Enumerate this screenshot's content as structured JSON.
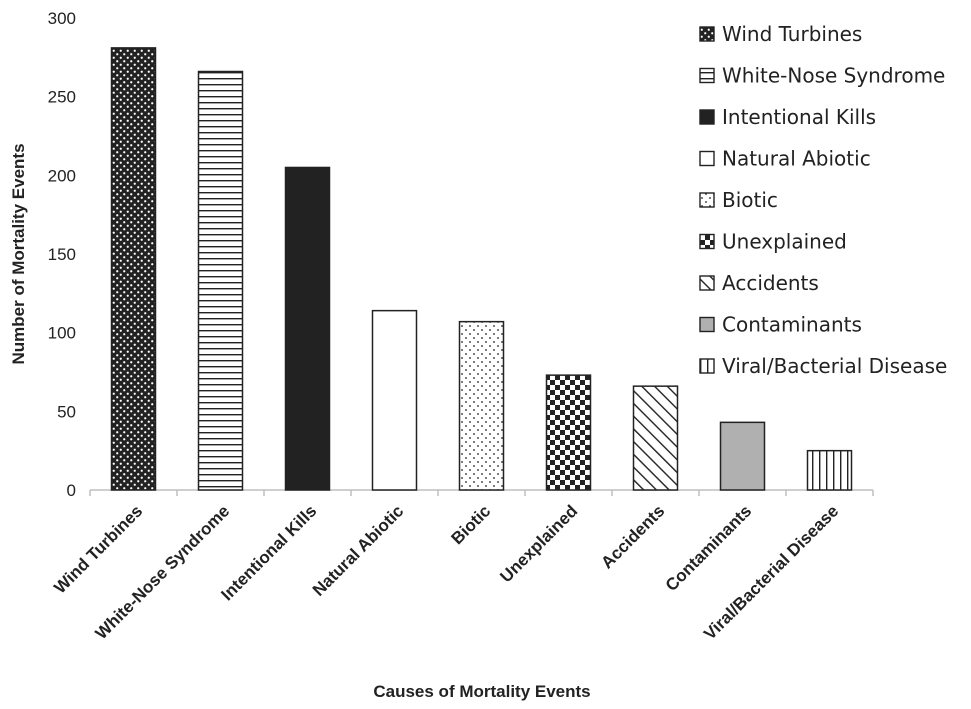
{
  "chart_data": {
    "type": "bar",
    "title": "",
    "xlabel": "Causes of Mortality Events",
    "ylabel": "Number of Mortality Events",
    "ylim": [
      0,
      300
    ],
    "yticks": [
      0,
      50,
      100,
      150,
      200,
      250,
      300
    ],
    "grid": false,
    "legend_position": "top-right",
    "categories": [
      "Wind Turbines",
      "White-Nose Syndrome",
      "Intentional Kills",
      "Natural Abiotic",
      "Biotic",
      "Unexplained",
      "Accidents",
      "Contaminants",
      "Viral/Bacterial Disease"
    ],
    "values": [
      281,
      266,
      205,
      114,
      107,
      73,
      66,
      43,
      25
    ],
    "patterns": [
      "dots-dense",
      "horizontal-lines",
      "solid-black",
      "white",
      "dots-sparse",
      "checker",
      "diagonal",
      "solid-gray",
      "vertical-lines"
    ],
    "colors": {
      "ink": "#222222",
      "gray": "#b0b0b0",
      "axis": "#bfbfbf"
    }
  }
}
